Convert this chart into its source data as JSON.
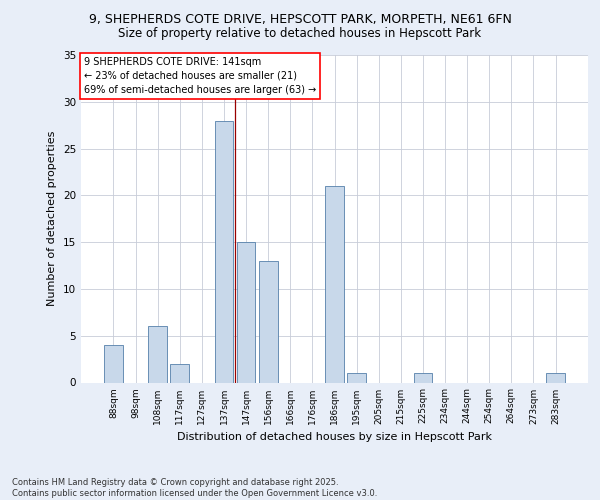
{
  "title_line1": "9, SHEPHERDS COTE DRIVE, HEPSCOTT PARK, MORPETH, NE61 6FN",
  "title_line2": "Size of property relative to detached houses in Hepscott Park",
  "xlabel": "Distribution of detached houses by size in Hepscott Park",
  "ylabel": "Number of detached properties",
  "categories": [
    "88sqm",
    "98sqm",
    "108sqm",
    "117sqm",
    "127sqm",
    "137sqm",
    "147sqm",
    "156sqm",
    "166sqm",
    "176sqm",
    "186sqm",
    "195sqm",
    "205sqm",
    "215sqm",
    "225sqm",
    "234sqm",
    "244sqm",
    "254sqm",
    "264sqm",
    "273sqm",
    "283sqm"
  ],
  "values": [
    4,
    0,
    6,
    2,
    0,
    28,
    15,
    13,
    0,
    0,
    21,
    1,
    0,
    0,
    1,
    0,
    0,
    0,
    0,
    0,
    1
  ],
  "bar_color": "#c8d8ea",
  "bar_edge_color": "#5580aa",
  "ylim": [
    0,
    35
  ],
  "yticks": [
    0,
    5,
    10,
    15,
    20,
    25,
    30,
    35
  ],
  "annotation_line1": "9 SHEPHERDS COTE DRIVE: 141sqm",
  "annotation_line2": "← 23% of detached houses are smaller (21)",
  "annotation_line3": "69% of semi-detached houses are larger (63) →",
  "vline_x": 5.5,
  "vline_color": "#990000",
  "bg_color": "#e8eef8",
  "plot_bg_color": "#ffffff",
  "grid_color": "#c8ccd8",
  "footer_text": "Contains HM Land Registry data © Crown copyright and database right 2025.\nContains public sector information licensed under the Open Government Licence v3.0.",
  "title1_fontsize": 9,
  "title2_fontsize": 8.5,
  "ylabel_fontsize": 8,
  "xlabel_fontsize": 8,
  "tick_fontsize": 7.5,
  "xtick_fontsize": 6.5
}
